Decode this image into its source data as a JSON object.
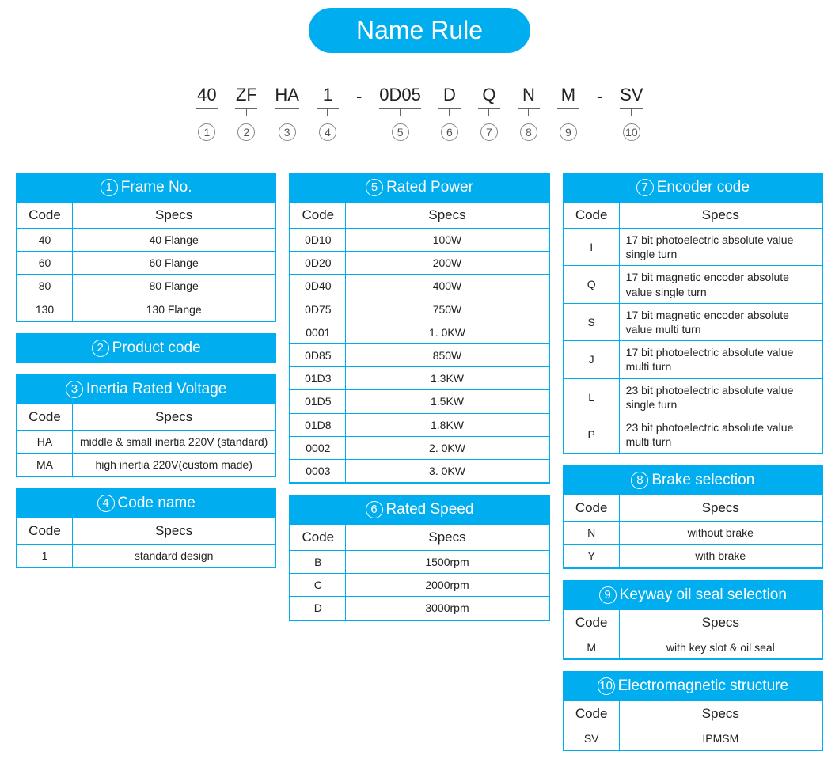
{
  "title": "Name Rule",
  "code_segments": [
    {
      "text": "40",
      "idx": "1"
    },
    {
      "text": "ZF",
      "idx": "2"
    },
    {
      "text": "HA",
      "idx": "3"
    },
    {
      "text": "1",
      "idx": "4"
    },
    {
      "dash": true
    },
    {
      "text": "0D05",
      "idx": "5"
    },
    {
      "text": "D",
      "idx": "6"
    },
    {
      "text": "Q",
      "idx": "7"
    },
    {
      "text": "N",
      "idx": "8"
    },
    {
      "text": "M",
      "idx": "9"
    },
    {
      "dash": true
    },
    {
      "text": "SV",
      "idx": "10"
    }
  ],
  "header_code": "Code",
  "header_specs": "Specs",
  "accent_color": "#00aeef",
  "columns": [
    [
      {
        "n": "1",
        "title": "Frame No.",
        "rows": [
          {
            "code": "40",
            "spec": "40  Flange"
          },
          {
            "code": "60",
            "spec": "60  Flange"
          },
          {
            "code": "80",
            "spec": "80  Flange"
          },
          {
            "code": "130",
            "spec": "130  Flange"
          }
        ]
      },
      {
        "n": "2",
        "title": "Product code",
        "rows": []
      },
      {
        "n": "3",
        "title": "Inertia Rated Voltage",
        "rows": [
          {
            "code": "HA",
            "spec": "middle  &  small inertia  220V (standard)"
          },
          {
            "code": "MA",
            "spec": "high inertia  220V(custom made)"
          }
        ]
      },
      {
        "n": "4",
        "title": "Code name",
        "rows": [
          {
            "code": "1",
            "spec": "standard design"
          }
        ]
      }
    ],
    [
      {
        "n": "5",
        "title": "Rated Power",
        "rows": [
          {
            "code": "0D10",
            "spec": "100W"
          },
          {
            "code": "0D20",
            "spec": "200W"
          },
          {
            "code": "0D40",
            "spec": "400W"
          },
          {
            "code": "0D75",
            "spec": "750W"
          },
          {
            "code": "0001",
            "spec": "1. 0KW"
          },
          {
            "code": "0D85",
            "spec": "850W"
          },
          {
            "code": "01D3",
            "spec": "1.3KW"
          },
          {
            "code": "01D5",
            "spec": "1.5KW"
          },
          {
            "code": "01D8",
            "spec": "1.8KW"
          },
          {
            "code": "0002",
            "spec": "2. 0KW"
          },
          {
            "code": "0003",
            "spec": "3. 0KW"
          }
        ]
      },
      {
        "n": "6",
        "title": "Rated Speed",
        "rows": [
          {
            "code": "B",
            "spec": "1500rpm"
          },
          {
            "code": "C",
            "spec": "2000rpm"
          },
          {
            "code": "D",
            "spec": "3000rpm"
          }
        ]
      }
    ],
    [
      {
        "n": "7",
        "title": "Encoder code",
        "left": true,
        "rows": [
          {
            "code": "I",
            "spec": "17 bit photoelectric absolute value single turn"
          },
          {
            "code": "Q",
            "spec": "17 bit magnetic encoder absolute value single turn"
          },
          {
            "code": "S",
            "spec": "17 bit magnetic encoder absolute value multi turn"
          },
          {
            "code": "J",
            "spec": "17 bit photoelectric absolute value multi turn"
          },
          {
            "code": "L",
            "spec": "23 bit photoelectric absolute value single turn"
          },
          {
            "code": "P",
            "spec": "23 bit photoelectric absolute value multi turn"
          }
        ]
      },
      {
        "n": "8",
        "title": "Brake selection",
        "rows": [
          {
            "code": "N",
            "spec": "without brake"
          },
          {
            "code": "Y",
            "spec": "with brake"
          }
        ]
      },
      {
        "n": "9",
        "title": "Keyway oil seal selection",
        "rows": [
          {
            "code": "M",
            "spec": "with key slot  &  oil seal"
          }
        ]
      },
      {
        "n": "10",
        "title": "Electromagnetic structure",
        "rows": [
          {
            "code": "SV",
            "spec": "IPMSM"
          }
        ]
      }
    ]
  ]
}
